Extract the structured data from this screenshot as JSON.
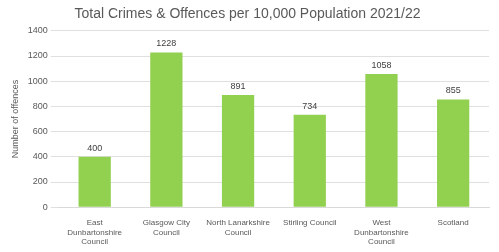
{
  "chart_data": {
    "type": "bar",
    "title": "Total Crimes & Offences per 10,000 Population 2021/22",
    "y_label": "Number of offences",
    "categories": [
      "East Dunbartonshire Council",
      "Glasgow City Council",
      "North Lanarkshire Council",
      "Stirling Council",
      "West Dunbartonshire Council",
      "Scotland"
    ],
    "values": [
      400,
      1228,
      891,
      734,
      1058,
      855
    ],
    "color": "#92d050",
    "ylim": [
      0,
      1400
    ],
    "yticks": [
      0,
      200,
      400,
      600,
      800,
      1000,
      1200,
      1400
    ],
    "grid": true,
    "data_labels": true
  }
}
